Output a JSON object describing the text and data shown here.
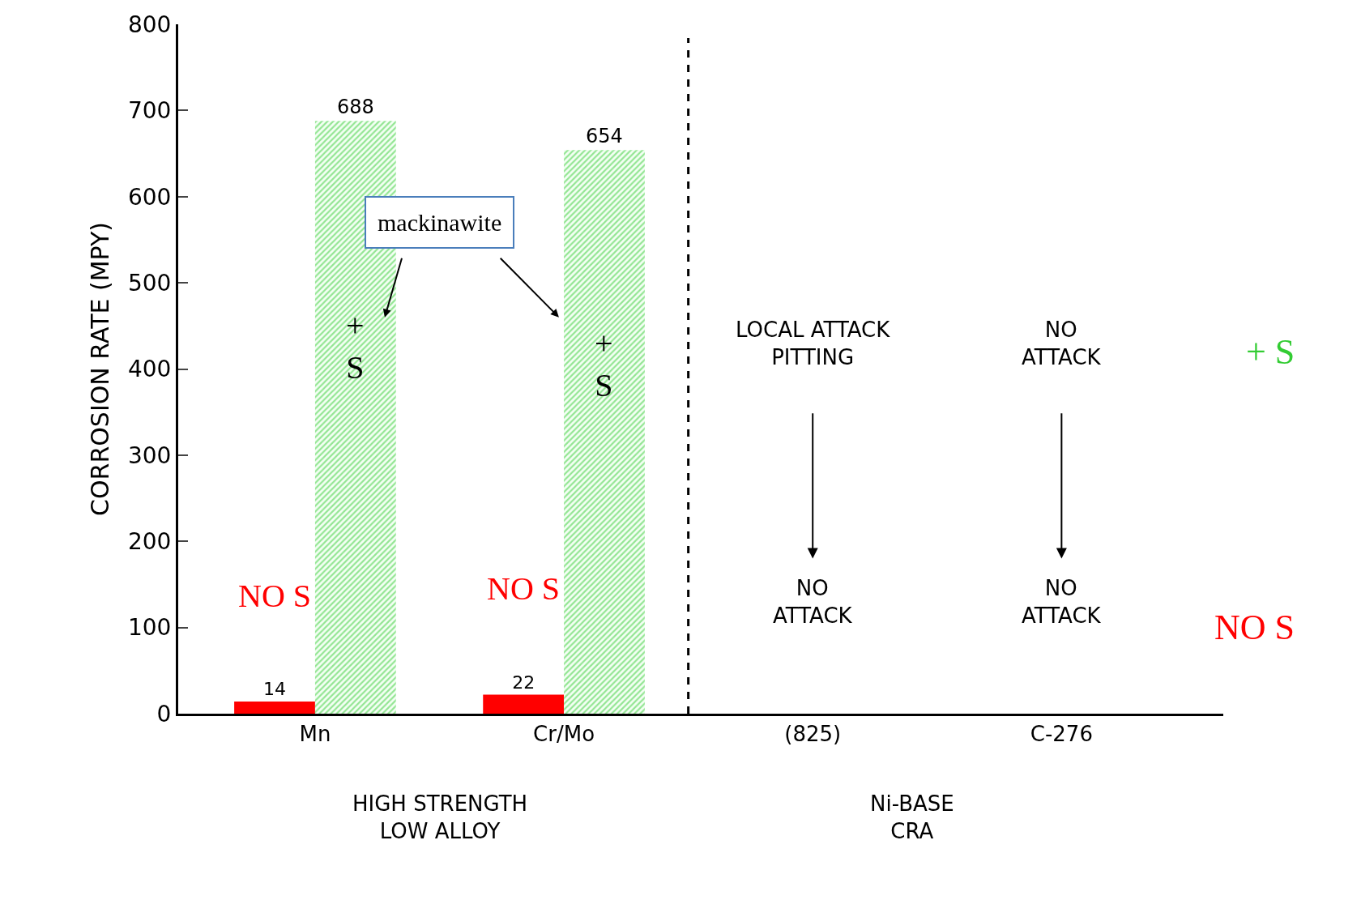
{
  "chart_data": {
    "type": "bar",
    "ylabel": "CORROSION RATE (MPY)",
    "categories": [
      "Mn",
      "Cr/Mo",
      "(825)",
      "C-276"
    ],
    "series": [
      {
        "name": "NO S",
        "color": "#ff0000",
        "values": [
          14,
          22,
          null,
          null
        ]
      },
      {
        "name": "+ S",
        "color": "#33cc33",
        "values": [
          688,
          654,
          null,
          null
        ]
      }
    ],
    "data_labels": true,
    "legend": false,
    "ylim": [
      0,
      800
    ],
    "yticks": [
      0,
      100,
      200,
      300,
      400,
      500,
      600,
      700,
      800
    ],
    "annotations": [
      "mackinawite",
      "LOCAL ATTACK\nPITTING",
      "NO\nATTACK",
      "NO\nATTACK",
      "NO\nATTACK",
      "HIGH STRENGTH\nLOW ALLOY",
      "Ni-BASE\nCRA"
    ]
  }
}
